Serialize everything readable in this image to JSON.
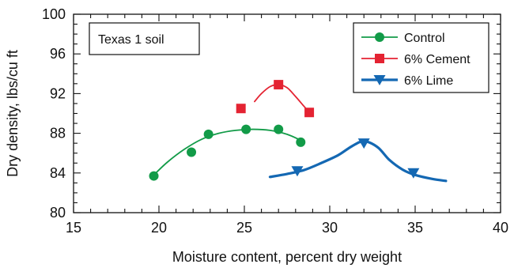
{
  "chart_data": {
    "type": "scatter",
    "xlabel": "Moisture content, percent dry weight",
    "ylabel": "Dry density, lbs/cu ft",
    "xlim": [
      15,
      40
    ],
    "ylim": [
      80,
      100
    ],
    "xticks": [
      15,
      20,
      25,
      30,
      35,
      40
    ],
    "yticks": [
      80,
      84,
      88,
      92,
      96,
      100
    ],
    "x_minor_step": 1,
    "y_minor_step": 1,
    "grid": false,
    "legend_position": "top-right",
    "annotation": "Texas 1 soil",
    "series": [
      {
        "name": "Control",
        "color": "#129b48",
        "marker": "circle",
        "x": [
          19.7,
          21.9,
          22.9,
          25.1,
          27.0,
          28.3
        ],
        "y": [
          83.7,
          86.1,
          87.9,
          88.4,
          88.4,
          87.1
        ],
        "curve": {
          "x": [
            19.7,
            20.5,
            21.5,
            22.5,
            23.5,
            24.5,
            25.5,
            26.5,
            27.5,
            28.3
          ],
          "y": [
            83.8,
            85.1,
            86.4,
            87.4,
            88.0,
            88.3,
            88.4,
            88.3,
            87.9,
            87.3
          ]
        }
      },
      {
        "name": "6% Cement",
        "color": "#e42332",
        "marker": "square",
        "x": [
          24.8,
          27.0,
          28.8
        ],
        "y": [
          90.5,
          92.9,
          90.1
        ],
        "curve": {
          "x": [
            25.6,
            26.0,
            26.5,
            27.0,
            27.5,
            28.0,
            28.6
          ],
          "y": [
            91.2,
            92.0,
            92.7,
            92.9,
            92.6,
            91.7,
            90.5
          ]
        }
      },
      {
        "name": "6% Lime",
        "color": "#1468b3",
        "marker": "triangle-down",
        "x": [
          28.1,
          32.0,
          34.9
        ],
        "y": [
          84.2,
          87.0,
          84.0
        ],
        "curve": {
          "x": [
            26.5,
            27.5,
            28.5,
            29.5,
            30.5,
            31.3,
            32.0,
            32.8,
            33.5,
            34.3,
            35.0,
            36.0,
            36.8
          ],
          "y": [
            83.6,
            83.9,
            84.3,
            85.0,
            85.8,
            86.7,
            87.2,
            86.6,
            85.3,
            84.3,
            83.8,
            83.4,
            83.2
          ]
        }
      }
    ]
  }
}
